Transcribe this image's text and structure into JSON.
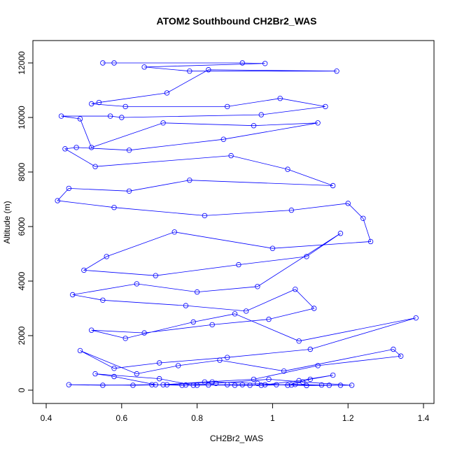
{
  "chart_data": {
    "type": "line",
    "title": "ATOM2 Southbound CH2Br2_WAS",
    "x_label": "CH2Br2_WAS",
    "y_label": "Altitude (m)",
    "xlim": [
      0.4,
      1.4
    ],
    "xticks": [
      0.4,
      0.6,
      0.8,
      1.0,
      1.2,
      1.4
    ],
    "ylim": [
      0,
      12000
    ],
    "yticks": [
      0,
      2000,
      4000,
      6000,
      8000,
      10000,
      12000
    ],
    "series": [
      {
        "color": "#0000ff",
        "x": [
          0.55,
          0.58,
          0.92,
          0.98,
          0.66,
          0.78,
          1.17,
          0.83,
          0.72,
          0.54,
          0.52,
          0.61,
          0.88,
          1.02,
          1.14,
          0.97,
          0.6,
          0.57,
          0.44,
          0.49,
          0.52,
          0.71,
          0.95,
          1.12,
          0.87,
          0.62,
          0.48,
          0.45,
          0.53,
          0.89,
          1.04,
          1.16,
          0.78,
          0.62,
          0.46,
          0.43,
          0.58,
          0.82,
          1.05,
          1.2,
          1.24,
          1.26,
          1.0,
          0.74,
          0.56,
          0.5,
          0.69,
          0.91,
          1.09,
          1.18,
          0.96,
          0.8,
          0.64,
          0.47,
          0.55,
          0.77,
          0.93,
          1.06,
          1.11,
          0.99,
          0.84,
          0.66,
          0.52,
          0.61,
          0.79,
          0.9,
          1.07,
          1.38,
          1.1,
          0.88,
          0.7,
          0.58,
          0.49,
          0.64,
          0.75,
          0.86,
          1.03,
          1.32,
          1.34,
          1.12,
          0.95,
          0.82,
          0.71,
          0.63,
          0.46,
          0.55,
          0.68,
          0.8,
          0.92,
          1.05,
          1.15,
          1.21,
          1.08,
          0.99,
          0.85,
          0.76,
          0.69,
          0.58,
          0.53,
          0.7,
          0.79,
          0.88,
          0.97,
          1.06,
          1.13,
          1.18,
          1.09,
          1.01,
          0.94,
          0.83,
          0.77,
          0.72,
          0.84,
          0.96,
          1.04,
          1.1,
          1.16,
          1.07,
          0.98,
          0.9
        ],
        "values": [
          12000,
          12000,
          12000,
          11980,
          11850,
          11700,
          11700,
          11750,
          10900,
          10550,
          10500,
          10400,
          10400,
          10700,
          10400,
          10100,
          10000,
          10050,
          10050,
          9950,
          8900,
          9800,
          9700,
          9800,
          9200,
          8800,
          8900,
          8850,
          8200,
          8600,
          8100,
          7500,
          7700,
          7300,
          7400,
          6950,
          6700,
          6400,
          6600,
          6850,
          6300,
          5450,
          5200,
          5800,
          4900,
          4400,
          4200,
          4600,
          4900,
          5750,
          3800,
          3600,
          3900,
          3500,
          3300,
          3100,
          2900,
          3700,
          3000,
          2600,
          2400,
          2100,
          2200,
          1900,
          2500,
          2800,
          1800,
          2650,
          1500,
          1200,
          1000,
          800,
          1450,
          600,
          900,
          1100,
          700,
          1500,
          1250,
          900,
          400,
          300,
          200,
          180,
          200,
          180,
          200,
          180,
          200,
          190,
          180,
          180,
          300,
          400,
          250,
          180,
          200,
          500,
          600,
          420,
          180,
          200,
          180,
          210,
          190,
          180,
          170,
          200,
          180,
          190,
          190,
          200,
          300,
          250,
          180,
          400,
          550,
          350,
          200,
          180
        ]
      }
    ]
  }
}
